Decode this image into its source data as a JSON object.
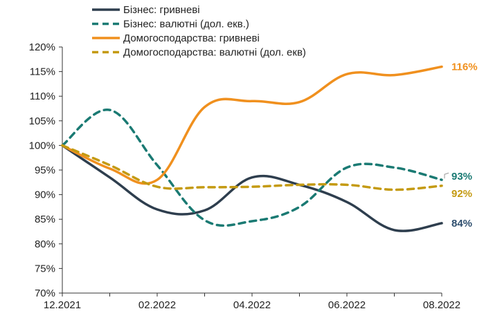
{
  "chart_data": {
    "type": "line",
    "title": "",
    "xlabel": "",
    "ylabel": "",
    "ylim": [
      70,
      120
    ],
    "y_ticks": [
      70,
      75,
      80,
      85,
      90,
      95,
      100,
      105,
      110,
      115,
      120
    ],
    "y_tick_labels": [
      "70%",
      "75%",
      "80%",
      "85%",
      "90%",
      "95%",
      "100%",
      "105%",
      "110%",
      "115%",
      "120%"
    ],
    "x": [
      "12.2021",
      "01.2022",
      "02.2022",
      "03.2022",
      "04.2022",
      "05.2022",
      "06.2022",
      "07.2022",
      "08.2022"
    ],
    "x_tick_labels": [
      "12.2021",
      "02.2022",
      "04.2022",
      "06.2022",
      "08.2022"
    ],
    "legend_position": "top-left",
    "grid": false,
    "series": [
      {
        "name": "Бізнес: гривневі",
        "color": "#2e3e4e",
        "dash": "solid",
        "values": [
          100,
          93.5,
          87,
          86.8,
          93.5,
          92,
          88.5,
          82.8,
          84.2
        ],
        "end_label": "84%",
        "end_label_color": "#2e4e6e"
      },
      {
        "name": "Бізнес: валютні (дол. екв.)",
        "color": "#1a7a73",
        "dash": "dashed",
        "values": [
          100,
          107.2,
          96,
          84.8,
          84.6,
          87.5,
          95.5,
          95.5,
          93
        ],
        "end_label": "93%",
        "end_label_color": "#1a7a73"
      },
      {
        "name": "Домогосподарства: гривневі",
        "color": "#f0901e",
        "dash": "solid",
        "values": [
          100,
          95.3,
          93,
          107.8,
          109,
          108.8,
          114.5,
          114.3,
          116
        ],
        "end_label": "116%",
        "end_label_color": "#f0901e"
      },
      {
        "name": "Домогосподарства: валютні (дол. екв)",
        "color": "#c49a12",
        "dash": "dashed",
        "values": [
          100,
          96,
          91.6,
          91.5,
          91.6,
          92,
          92,
          91,
          91.8
        ],
        "end_label": "92%",
        "end_label_color": "#c49a12"
      }
    ]
  }
}
